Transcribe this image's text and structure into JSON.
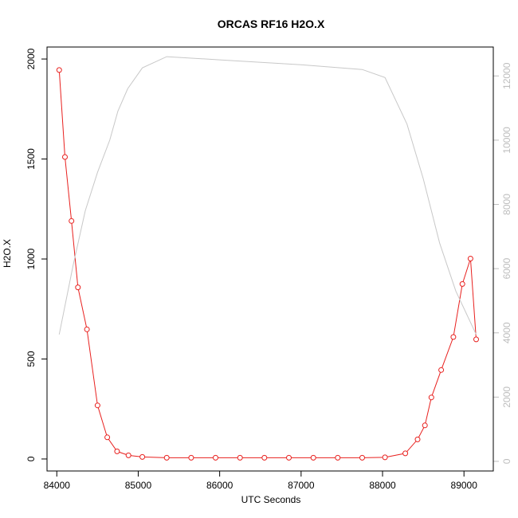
{
  "chart_data": {
    "type": "line",
    "title": "ORCAS RF16 H2O.X",
    "xlabel": "UTC Seconds",
    "ylabel": "H2O.X",
    "xlim": [
      83880,
      89360
    ],
    "ylim": [
      -60,
      2060
    ],
    "y2lim": [
      -300,
      12900
    ],
    "x_ticks": [
      84000,
      85000,
      86000,
      87000,
      88000,
      89000
    ],
    "y_ticks": [
      0,
      500,
      1000,
      1500,
      2000
    ],
    "y2_ticks": [
      0,
      2000,
      4000,
      6000,
      8000,
      10000,
      12000
    ],
    "grid": false,
    "series": [
      {
        "axis": "left",
        "color": "#e8201e",
        "marker": "circle",
        "x": [
          84030,
          84100,
          84180,
          84260,
          84370,
          84500,
          84620,
          84740,
          84880,
          85050,
          85350,
          85650,
          85950,
          86250,
          86550,
          86850,
          87150,
          87450,
          87750,
          88030,
          88280,
          88430,
          88520,
          88600,
          88720,
          88870,
          88980,
          89080,
          89150
        ],
        "values": [
          1945,
          1510,
          1190,
          858,
          648,
          268,
          108,
          38,
          18,
          10,
          6,
          6,
          6,
          6,
          6,
          6,
          6,
          6,
          6,
          8,
          28,
          98,
          168,
          308,
          445,
          610,
          875,
          1002,
          598
        ]
      },
      {
        "axis": "right",
        "color": "#c8c8c8",
        "marker": "none",
        "x": [
          84030,
          84200,
          84350,
          84500,
          84650,
          84750,
          84870,
          85050,
          85350,
          86000,
          87000,
          87750,
          88030,
          88300,
          88500,
          88700,
          88900,
          89150
        ],
        "values": [
          3950,
          6100,
          7800,
          9000,
          10000,
          10900,
          11600,
          12250,
          12600,
          12500,
          12350,
          12200,
          11950,
          10500,
          8800,
          6800,
          5300,
          3950
        ]
      }
    ]
  }
}
